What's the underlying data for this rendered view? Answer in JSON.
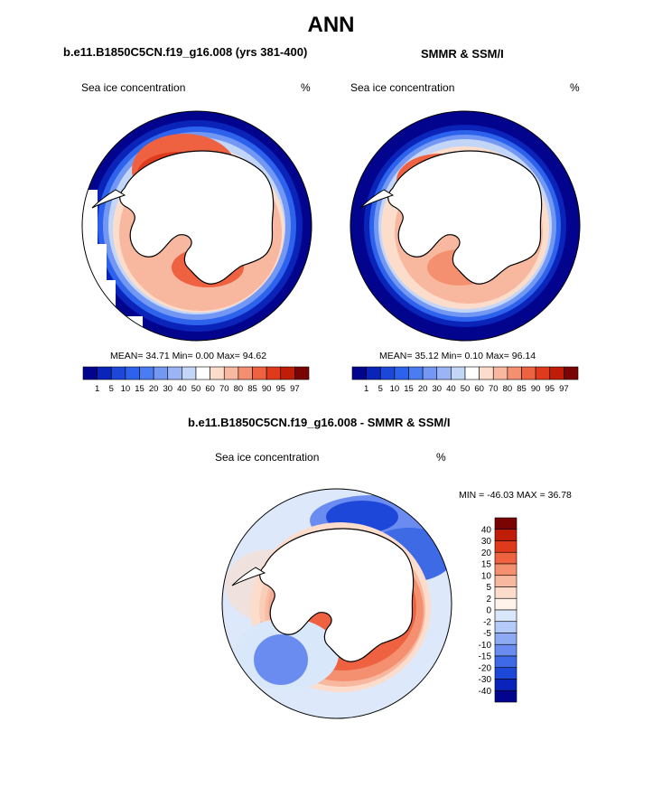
{
  "figure": {
    "title": "ANN"
  },
  "panels": [
    {
      "title": "b.e11.B1850C5CN.f19_g16.008 (yrs 381-400)",
      "variable": "Sea ice concentration",
      "units": "%",
      "stats": {
        "mean": "34.71",
        "min": "0.00",
        "max": "94.62"
      },
      "stats_text": "MEAN=  34.71  Min=    0.00  Max=  94.62"
    },
    {
      "title": "SMMR & SSM/I",
      "variable": "Sea ice concentration",
      "units": "%",
      "stats": {
        "mean": "35.12",
        "min": "0.10",
        "max": "96.14"
      },
      "stats_text": "MEAN=  35.12  Min=    0.10  Max=  96.14"
    },
    {
      "title": "b.e11.B1850C5CN.f19_g16.008 - SMMR & SSM/I",
      "variable": "Sea ice concentration",
      "units": "%",
      "stats": {
        "min": "-46.03",
        "max": "36.78"
      },
      "stats_text": "MIN = -46.03 MAX =  36.78"
    }
  ],
  "colorbar_concentration": {
    "labels": [
      "1",
      "5",
      "10",
      "15",
      "20",
      "30",
      "40",
      "50",
      "60",
      "70",
      "80",
      "85",
      "90",
      "95",
      "97"
    ],
    "colors": [
      "#03048e",
      "#0a23b8",
      "#1d47d8",
      "#2d62ec",
      "#4a7cf2",
      "#7398f4",
      "#9ab4f6",
      "#c4d6f8",
      "#ffffff",
      "#fcdccb",
      "#f8b79f",
      "#f4906f",
      "#ee6241",
      "#df3a1b",
      "#bf1d07",
      "#7a0403"
    ]
  },
  "colorbar_difference": {
    "labels": [
      "40",
      "30",
      "20",
      "15",
      "10",
      "5",
      "2",
      "0",
      "-2",
      "-5",
      "-10",
      "-15",
      "-20",
      "-30",
      "-40"
    ],
    "colors": [
      "#7a0403",
      "#bf1d07",
      "#df3a1b",
      "#ee6241",
      "#f4906f",
      "#f8b79f",
      "#fcdccb",
      "#fff3ea",
      "#d9e7fa",
      "#b3cbf6",
      "#8eaaf3",
      "#6a8cf0",
      "#3f6ae6",
      "#1d47d8",
      "#0a23b8",
      "#03048e"
    ]
  },
  "map_colors": {
    "ocean": "#ffffff",
    "land": "#ffffff",
    "coast": "#000000"
  }
}
